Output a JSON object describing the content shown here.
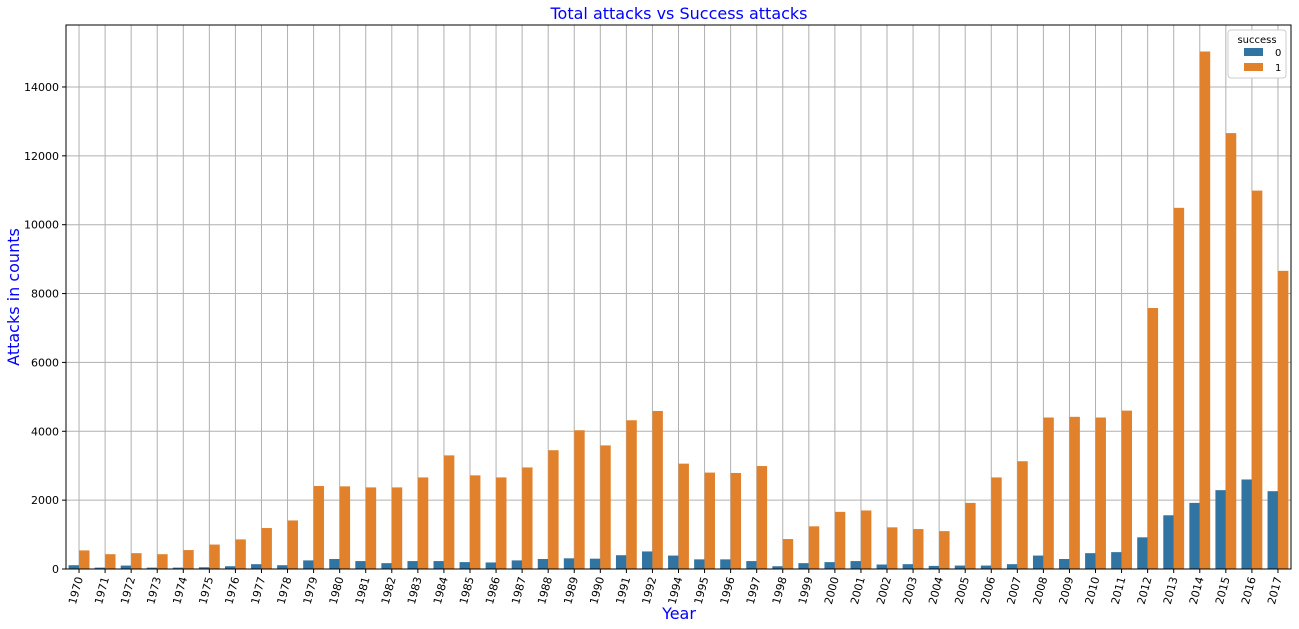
{
  "chart_data": {
    "type": "bar",
    "title": "Total attacks vs Success attacks",
    "xlabel": "Year",
    "ylabel": "Attacks in counts",
    "ylim": [
      0,
      15800
    ],
    "yticks": [
      0,
      2000,
      4000,
      6000,
      8000,
      10000,
      12000,
      14000
    ],
    "grid": true,
    "legend": {
      "title": "success",
      "placement": "top-right"
    },
    "categories": [
      "1970",
      "1971",
      "1972",
      "1973",
      "1974",
      "1975",
      "1976",
      "1977",
      "1978",
      "1979",
      "1980",
      "1981",
      "1982",
      "1983",
      "1984",
      "1985",
      "1986",
      "1987",
      "1988",
      "1989",
      "1990",
      "1991",
      "1992",
      "1994",
      "1995",
      "1996",
      "1997",
      "1998",
      "1999",
      "2000",
      "2001",
      "2002",
      "2003",
      "2004",
      "2005",
      "2006",
      "2007",
      "2008",
      "2009",
      "2010",
      "2011",
      "2012",
      "2013",
      "2014",
      "2015",
      "2016",
      "2017"
    ],
    "series": [
      {
        "name": "0",
        "color": "#3274a1",
        "values": [
          110,
          40,
          100,
          40,
          40,
          50,
          80,
          140,
          110,
          250,
          290,
          230,
          170,
          230,
          230,
          200,
          190,
          250,
          290,
          310,
          300,
          400,
          510,
          390,
          280,
          280,
          230,
          80,
          170,
          200,
          230,
          130,
          140,
          90,
          100,
          100,
          140,
          390,
          290,
          460,
          490,
          920,
          1560,
          1920,
          2290,
          2600,
          2260
        ]
      },
      {
        "name": "1",
        "color": "#e1812c",
        "values": [
          540,
          430,
          460,
          430,
          550,
          710,
          860,
          1190,
          1410,
          2410,
          2400,
          2370,
          2370,
          2660,
          3300,
          2720,
          2660,
          2950,
          3450,
          4030,
          3590,
          4320,
          4590,
          3060,
          2800,
          2790,
          2990,
          870,
          1240,
          1660,
          1700,
          1210,
          1160,
          1100,
          1920,
          2660,
          3130,
          4400,
          4420,
          4400,
          4600,
          7580,
          10490,
          15030,
          12660,
          10990,
          8660
        ]
      }
    ]
  }
}
